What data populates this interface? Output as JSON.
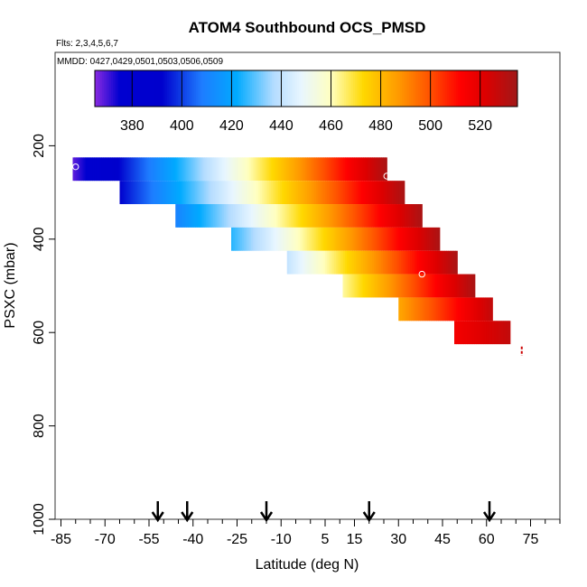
{
  "chart_data": {
    "type": "heatmap",
    "title": "ATOM4 Southbound OCS_PMSD",
    "subtitle_flights": "Flts: 2,3,4,5,6,7",
    "subtitle_dates": "MMDD: 0427,0429,0501,0503,0506,0509",
    "xlabel": "Latitude (deg N)",
    "ylabel": "PSXC (mbar)",
    "xlim": [
      -87,
      85
    ],
    "ylim": [
      1000,
      0
    ],
    "x_ticks": [
      -85,
      -70,
      -55,
      -40,
      -25,
      -10,
      5,
      15,
      30,
      45,
      60,
      75
    ],
    "x_tick_labels": [
      "-85",
      "-70",
      "-55",
      "-40",
      "-25",
      "-10",
      "5",
      "15",
      "30",
      "45",
      "60",
      "75"
    ],
    "x_minor_ticks": [
      -80,
      -75,
      -65,
      -60,
      -50,
      -45,
      -35,
      -30,
      -20,
      -15,
      -5,
      0,
      10,
      20,
      25,
      35,
      40,
      50,
      55,
      65,
      70,
      80,
      85
    ],
    "y_ticks": [
      200,
      400,
      600,
      800,
      1000
    ],
    "y_tick_labels": [
      "200",
      "400",
      "600",
      "800",
      "1000"
    ],
    "colorbar": {
      "range": [
        365,
        535
      ],
      "ticks": [
        380,
        400,
        420,
        440,
        460,
        480,
        500,
        520
      ],
      "tick_labels": [
        "380",
        "400",
        "420",
        "440",
        "460",
        "480",
        "500",
        "520"
      ],
      "stops": [
        {
          "v": 365,
          "c": "#8a2be2"
        },
        {
          "v": 375,
          "c": "#0000d0"
        },
        {
          "v": 392,
          "c": "#0000cd"
        },
        {
          "v": 408,
          "c": "#1e7cff"
        },
        {
          "v": 422,
          "c": "#00aaff"
        },
        {
          "v": 437,
          "c": "#b4dcff"
        },
        {
          "v": 448,
          "c": "#e8f6ff"
        },
        {
          "v": 460,
          "c": "#ffffc0"
        },
        {
          "v": 473,
          "c": "#ffd800"
        },
        {
          "v": 487,
          "c": "#ff9a00"
        },
        {
          "v": 500,
          "c": "#ff5000"
        },
        {
          "v": 512,
          "c": "#ff0000"
        },
        {
          "v": 522,
          "c": "#dd0000"
        },
        {
          "v": 535,
          "c": "#a01818"
        }
      ]
    },
    "pressure_bins": [
      {
        "p_top": 225,
        "p_bottom": 275,
        "lat_start": -81,
        "lat_end": 26,
        "val_start": 368,
        "val_end": 533
      },
      {
        "p_top": 275,
        "p_bottom": 325,
        "lat_start": -65,
        "lat_end": 32,
        "val_start": 392,
        "val_end": 533
      },
      {
        "p_top": 325,
        "p_bottom": 375,
        "lat_start": -46,
        "lat_end": 38,
        "val_start": 410,
        "val_end": 533
      },
      {
        "p_top": 375,
        "p_bottom": 425,
        "lat_start": -27,
        "lat_end": 44,
        "val_start": 425,
        "val_end": 533
      },
      {
        "p_top": 425,
        "p_bottom": 475,
        "lat_start": -8,
        "lat_end": 50,
        "val_start": 440,
        "val_end": 533
      },
      {
        "p_top": 475,
        "p_bottom": 525,
        "lat_start": 11,
        "lat_end": 56,
        "val_start": 462,
        "val_end": 533
      },
      {
        "p_top": 525,
        "p_bottom": 575,
        "lat_start": 30,
        "lat_end": 62,
        "val_start": 484,
        "val_end": 528
      },
      {
        "p_top": 575,
        "p_bottom": 625,
        "lat_start": 49,
        "lat_end": 68,
        "val_start": 515,
        "val_end": 528
      }
    ],
    "sample_circles": [
      {
        "lat": -80,
        "p": 245
      },
      {
        "lat": 26,
        "p": 265
      },
      {
        "lat": 38,
        "p": 475
      }
    ],
    "edge_marks": {
      "lat": 72,
      "p_start": 630,
      "p_end": 650
    },
    "flight_arrows_lat": [
      -52,
      -42,
      -15,
      20,
      61
    ]
  }
}
